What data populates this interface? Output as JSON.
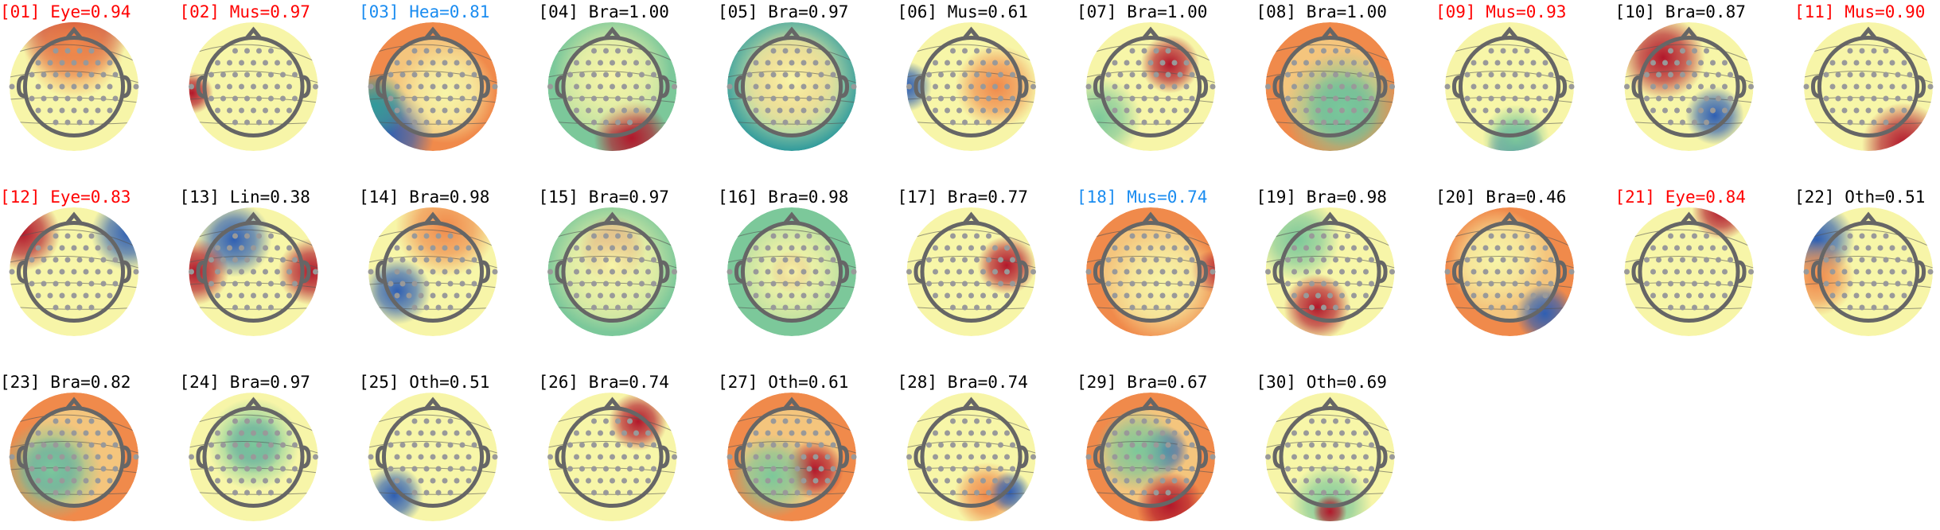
{
  "panels": [
    {
      "label": "[01] Eye=0.94",
      "color": "#ff0000"
    },
    {
      "label": "[02] Mus=0.97",
      "color": "#ff0000"
    },
    {
      "label": "[03] Hea=0.81",
      "color": "#1a8cf0"
    },
    {
      "label": "[04] Bra=1.00",
      "color": "#000000"
    },
    {
      "label": "[05] Bra=0.97",
      "color": "#000000"
    },
    {
      "label": "[06] Mus=0.61",
      "color": "#000000"
    },
    {
      "label": "[07] Bra=1.00",
      "color": "#000000"
    },
    {
      "label": "[08] Bra=1.00",
      "color": "#000000"
    },
    {
      "label": "[09] Mus=0.93",
      "color": "#ff0000"
    },
    {
      "label": "[10] Bra=0.87",
      "color": "#000000"
    },
    {
      "label": "[11] Mus=0.90",
      "color": "#ff0000"
    },
    {
      "label": "[12] Eye=0.83",
      "color": "#ff0000"
    },
    {
      "label": "[13] Lin=0.38",
      "color": "#000000"
    },
    {
      "label": "[14] Bra=0.98",
      "color": "#000000"
    },
    {
      "label": "[15] Bra=0.97",
      "color": "#000000"
    },
    {
      "label": "[16] Bra=0.98",
      "color": "#000000"
    },
    {
      "label": "[17] Bra=0.77",
      "color": "#000000"
    },
    {
      "label": "[18] Mus=0.74",
      "color": "#1a8cf0"
    },
    {
      "label": "[19] Bra=0.98",
      "color": "#000000"
    },
    {
      "label": "[20] Bra=0.46",
      "color": "#000000"
    },
    {
      "label": "[21] Eye=0.84",
      "color": "#ff0000"
    },
    {
      "label": "[22] Oth=0.51",
      "color": "#000000"
    },
    {
      "label": "[23] Bra=0.82",
      "color": "#000000"
    },
    {
      "label": "[24] Bra=0.97",
      "color": "#000000"
    },
    {
      "label": "[25] Oth=0.51",
      "color": "#000000"
    },
    {
      "label": "[26] Bra=0.74",
      "color": "#000000"
    },
    {
      "label": "[27] Oth=0.61",
      "color": "#000000"
    },
    {
      "label": "[28] Bra=0.74",
      "color": "#000000"
    },
    {
      "label": "[29] Bra=0.67",
      "color": "#000000"
    },
    {
      "label": "[30] Oth=0.69",
      "color": "#000000"
    }
  ]
}
